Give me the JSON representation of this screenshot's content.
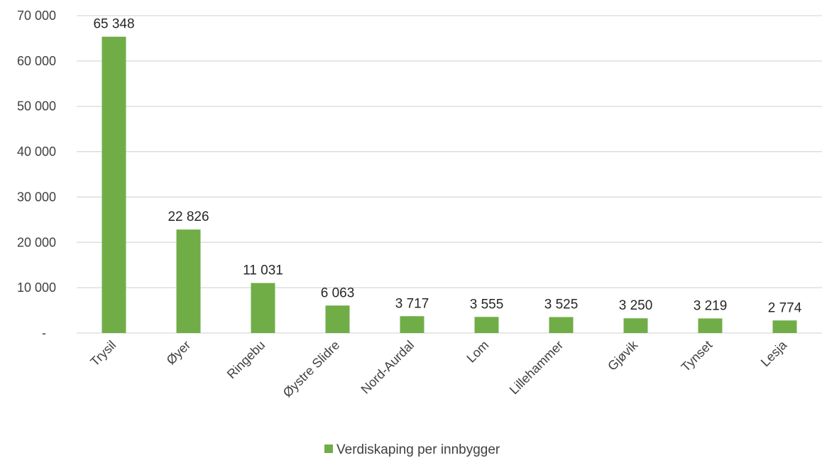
{
  "chart_data": {
    "type": "bar",
    "categories": [
      "Trysil",
      "Øyer",
      "Ringebu",
      "Øystre Slidre",
      "Nord-Aurdal",
      "Lom",
      "Lillehammer",
      "Gjøvik",
      "Tynset",
      "Lesja"
    ],
    "series": [
      {
        "name": "Verdiskaping per innbygger",
        "values": [
          65348,
          22826,
          11031,
          6063,
          3717,
          3555,
          3525,
          3250,
          3219,
          2774
        ],
        "value_labels": [
          "65 348",
          "22 826",
          "11 031",
          "6 063",
          "3 717",
          "3 555",
          "3 525",
          "3 250",
          "3 219",
          "2 774"
        ],
        "color": "#70ad47"
      }
    ],
    "ylim": [
      0,
      70000
    ],
    "yticks": [
      0,
      10000,
      20000,
      30000,
      40000,
      50000,
      60000,
      70000
    ],
    "ytick_labels": [
      "-",
      "10 000",
      "20 000",
      "30 000",
      "40 000",
      "50 000",
      "60 000",
      "70 000"
    ],
    "grid": true,
    "grid_color": "#d9d9d9",
    "legend_position": "bottom",
    "title": "",
    "xlabel": "",
    "ylabel": ""
  }
}
